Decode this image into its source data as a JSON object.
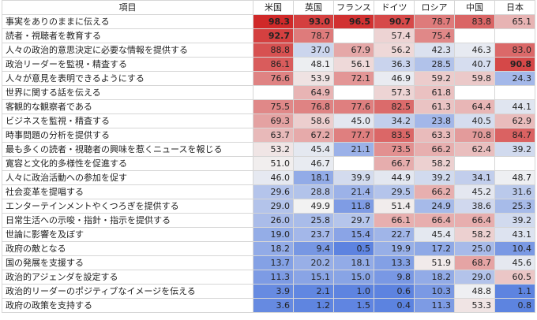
{
  "header": {
    "item_label": "項目",
    "countries": [
      "米国",
      "英国",
      "フランス",
      "ドイツ",
      "ロシア",
      "中国",
      "日本"
    ]
  },
  "rows": [
    {
      "label": "事実をありのままに伝える",
      "values": [
        "98.3",
        "93.0",
        "96.5",
        "90.7",
        "78.7",
        "83.8",
        "65.1"
      ]
    },
    {
      "label": "読者・視聴者を教育する",
      "values": [
        "92.7",
        "78.7",
        "",
        "57.4",
        "75.4",
        "",
        ""
      ]
    },
    {
      "label": "人々の政治的意思決定に必要な情報を提供する",
      "values": [
        "88.8",
        "37.0",
        "67.9",
        "56.2",
        "42.3",
        "46.3",
        "83.0"
      ]
    },
    {
      "label": "政治リーダーを監視・精査する",
      "values": [
        "86.1",
        "48.1",
        "56.1",
        "36.3",
        "28.5",
        "40.7",
        "90.8"
      ]
    },
    {
      "label": "人々が意見を表明できるようにする",
      "values": [
        "76.6",
        "53.9",
        "72.1",
        "46.9",
        "59.2",
        "59.8",
        "24.3"
      ]
    },
    {
      "label": "世界に関する話を伝える",
      "values": [
        "",
        "64.9",
        "",
        "57.3",
        "61.8",
        "",
        ""
      ]
    },
    {
      "label": "客観的な観察者である",
      "values": [
        "75.5",
        "76.8",
        "77.6",
        "82.5",
        "61.3",
        "64.4",
        "44.1"
      ]
    },
    {
      "label": "ビジネスを監視・精査する",
      "values": [
        "69.3",
        "58.6",
        "45.0",
        "34.2",
        "23.8",
        "40.5",
        "62.9"
      ]
    },
    {
      "label": "時事問題の分析を提供する",
      "values": [
        "63.7",
        "67.2",
        "77.7",
        "83.5",
        "63.3",
        "70.8",
        "84.7"
      ]
    },
    {
      "label": "最も多くの読者・視聴者の興味を惹くニュースを報じる",
      "values": [
        "53.2",
        "45.4",
        "21.1",
        "73.5",
        "66.2",
        "62.4",
        "39.2"
      ]
    },
    {
      "label": "寛容と文化的多様性を促進する",
      "values": [
        "51.0",
        "46.7",
        "",
        "66.7",
        "58.2",
        "",
        ""
      ]
    },
    {
      "label": "人々に政治活動への参加を促す",
      "values": [
        "46.0",
        "18.1",
        "39.9",
        "44.9",
        "39.2",
        "34.1",
        "48.7"
      ]
    },
    {
      "label": "社会変革を提唱する",
      "values": [
        "29.6",
        "28.8",
        "21.4",
        "29.5",
        "66.2",
        "45.2",
        "31.6"
      ]
    },
    {
      "label": "エンターテインメントやくつろぎを提供する",
      "values": [
        "29.0",
        "49.9",
        "11.8",
        "51.4",
        "24.9",
        "38.6",
        "25.3"
      ]
    },
    {
      "label": "日常生活への示唆・指針・指示を提供する",
      "values": [
        "26.0",
        "25.8",
        "29.7",
        "66.1",
        "66.4",
        "66.4",
        "39.2"
      ]
    },
    {
      "label": "世論に影響を及ぼす",
      "values": [
        "19.0",
        "23.7",
        "15.4",
        "22.7",
        "45.4",
        "58.2",
        "43.1"
      ]
    },
    {
      "label": "政府の敵となる",
      "values": [
        "18.2",
        "9.4",
        "0.5",
        "19.9",
        "17.2",
        "25.0",
        "10.4"
      ]
    },
    {
      "label": "国の発展を支援する",
      "values": [
        "13.7",
        "20.2",
        "18.1",
        "13.3",
        "51.9",
        "68.7",
        "45.6"
      ]
    },
    {
      "label": "政治的アジェンダを設定する",
      "values": [
        "11.3",
        "15.1",
        "15.0",
        "9.8",
        "18.2",
        "29.0",
        "60.5"
      ]
    },
    {
      "label": "政治的リーダーのポジティブなイメージを伝える",
      "values": [
        "3.9",
        "2.1",
        "1.0",
        "0.6",
        "10.3",
        "48.8",
        "1.1"
      ]
    },
    {
      "label": "政府の政策を支持する",
      "values": [
        "3.6",
        "1.2",
        "1.5",
        "0.4",
        "11.3",
        "53.3",
        "0.8"
      ]
    }
  ],
  "bold_values": [
    "98.3",
    "93.0",
    "96.5",
    "90.7",
    "92.7",
    "90.8"
  ],
  "scale": {
    "low_color": "#5b82e0",
    "mid_color": "#f2f2f2",
    "high_color": "#cf2222",
    "min": 0,
    "mid": 50,
    "max": 100,
    "empty_color": "#ffffff"
  }
}
